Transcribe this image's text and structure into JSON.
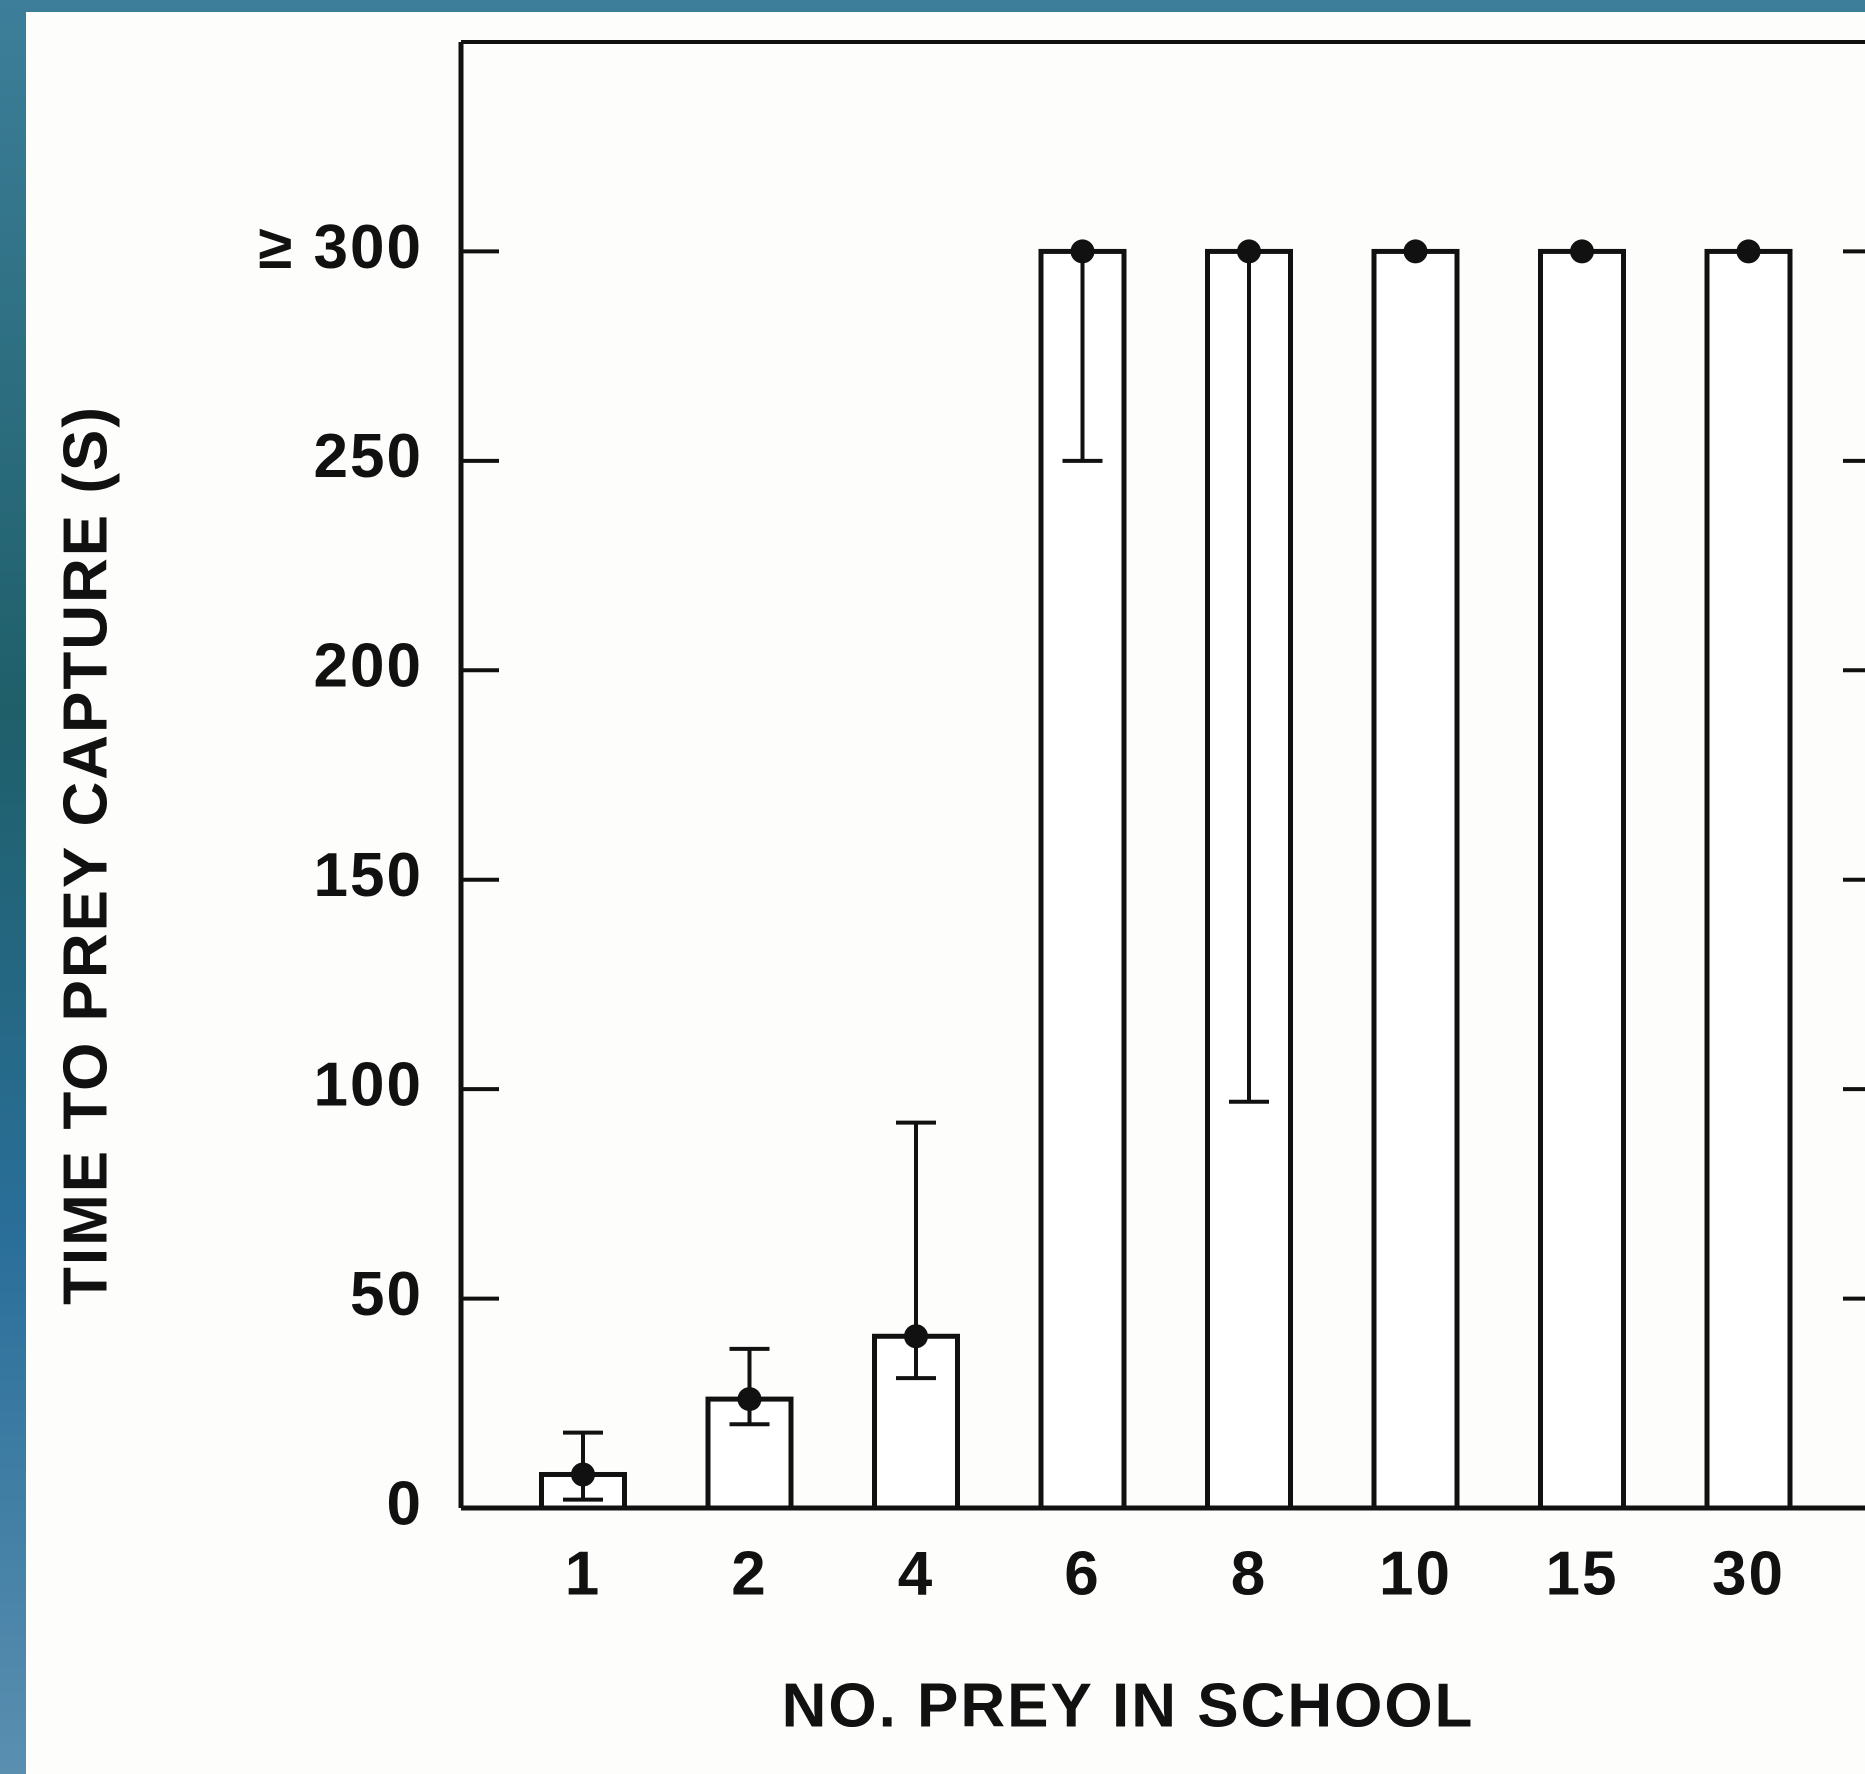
{
  "chart_data": {
    "type": "bar",
    "x_label": "NO. PREY IN SCHOOL",
    "y_label": "TIME TO PREY CAPTURE (S)",
    "categories": [
      "1",
      "2",
      "4",
      "6",
      "8",
      "10",
      "15",
      "30"
    ],
    "values": [
      8,
      26,
      41,
      300,
      300,
      300,
      300,
      300
    ],
    "err_minus": [
      6,
      6,
      10,
      50,
      203,
      null,
      null,
      null
    ],
    "err_plus": [
      10,
      12,
      51,
      null,
      null,
      null,
      null,
      null
    ],
    "color": "#ffffff",
    "ylim": [
      0,
      350
    ],
    "yticks": [
      0,
      50,
      100,
      150,
      200,
      250,
      {
        "value": 300,
        "label": "≥ 300"
      }
    ]
  }
}
